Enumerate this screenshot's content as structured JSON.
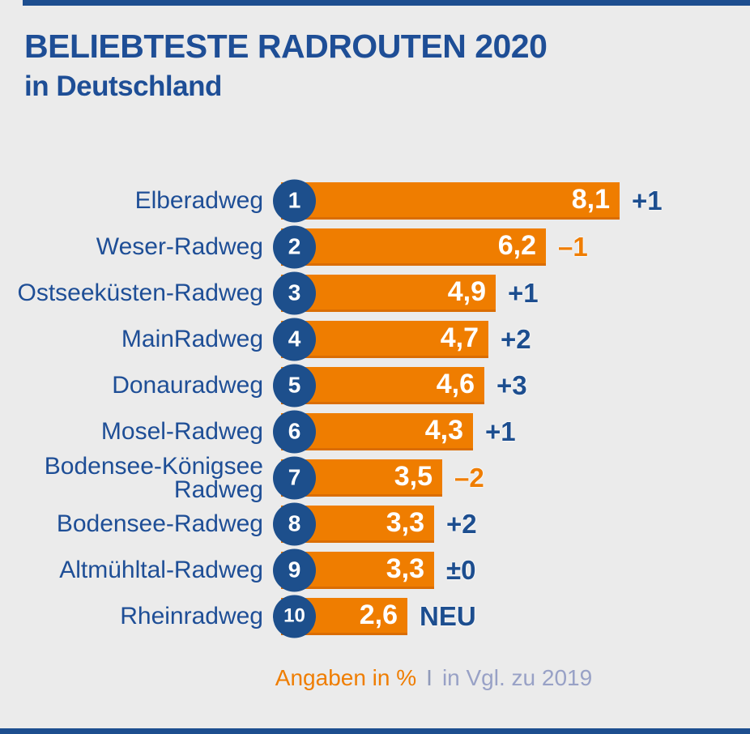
{
  "page": {
    "background": "#ebebeb",
    "accent_navy": "#1d4e8f",
    "accent_orange": "#ef7d00"
  },
  "header": {
    "title": "BELIEBTESTE RADROUTEN 2020",
    "subtitle": "in Deutschland"
  },
  "footer": {
    "unit_note": "Angaben in %",
    "separator": "I",
    "comparison_note": "in Vgl. zu 2019"
  },
  "chart_data": {
    "type": "bar",
    "orientation": "horizontal",
    "title": "Beliebteste Radrouten 2020 in Deutschland",
    "unit": "%",
    "legend": "none",
    "grid": false,
    "xlim": [
      0,
      9
    ],
    "categories": [
      "Elberadweg",
      "Weser-Radweg",
      "Ostseeküsten-Radweg",
      "MainRadweg",
      "Donauradweg",
      "Mosel-Radweg",
      "Bodensee-Königsee Radweg",
      "Bodensee-Radweg",
      "Altmühltal-Radweg",
      "Rheinradweg"
    ],
    "values": [
      8.1,
      6.2,
      4.9,
      4.7,
      4.6,
      4.3,
      3.5,
      3.3,
      3.3,
      2.6
    ],
    "rows": [
      {
        "rank": "1",
        "label": "Elberadweg",
        "value": 8.1,
        "value_label": "8,1",
        "change": "+1",
        "change_direction": "up"
      },
      {
        "rank": "2",
        "label": "Weser-Radweg",
        "value": 6.2,
        "value_label": "6,2",
        "change": "–1",
        "change_direction": "down"
      },
      {
        "rank": "3",
        "label": "Ostseeküsten-Radweg",
        "value": 4.9,
        "value_label": "4,9",
        "change": "+1",
        "change_direction": "up"
      },
      {
        "rank": "4",
        "label": "MainRadweg",
        "value": 4.7,
        "value_label": "4,7",
        "change": "+2",
        "change_direction": "up"
      },
      {
        "rank": "5",
        "label": "Donauradweg",
        "value": 4.6,
        "value_label": "4,6",
        "change": "+3",
        "change_direction": "up"
      },
      {
        "rank": "6",
        "label": "Mosel-Radweg",
        "value": 4.3,
        "value_label": "4,3",
        "change": "+1",
        "change_direction": "up"
      },
      {
        "rank": "7",
        "label": "Bodensee-Königsee Radweg",
        "value": 3.5,
        "value_label": "3,5",
        "change": "–2",
        "change_direction": "down"
      },
      {
        "rank": "8",
        "label": "Bodensee-Radweg",
        "value": 3.3,
        "value_label": "3,3",
        "change": "+2",
        "change_direction": "up"
      },
      {
        "rank": "9",
        "label": "Altmühltal-Radweg",
        "value": 3.3,
        "value_label": "3,3",
        "change": "±0",
        "change_direction": "neutral"
      },
      {
        "rank": "10",
        "label": "Rheinradweg",
        "value": 2.6,
        "value_label": "2,6",
        "change": "NEU",
        "change_direction": "new"
      }
    ]
  }
}
